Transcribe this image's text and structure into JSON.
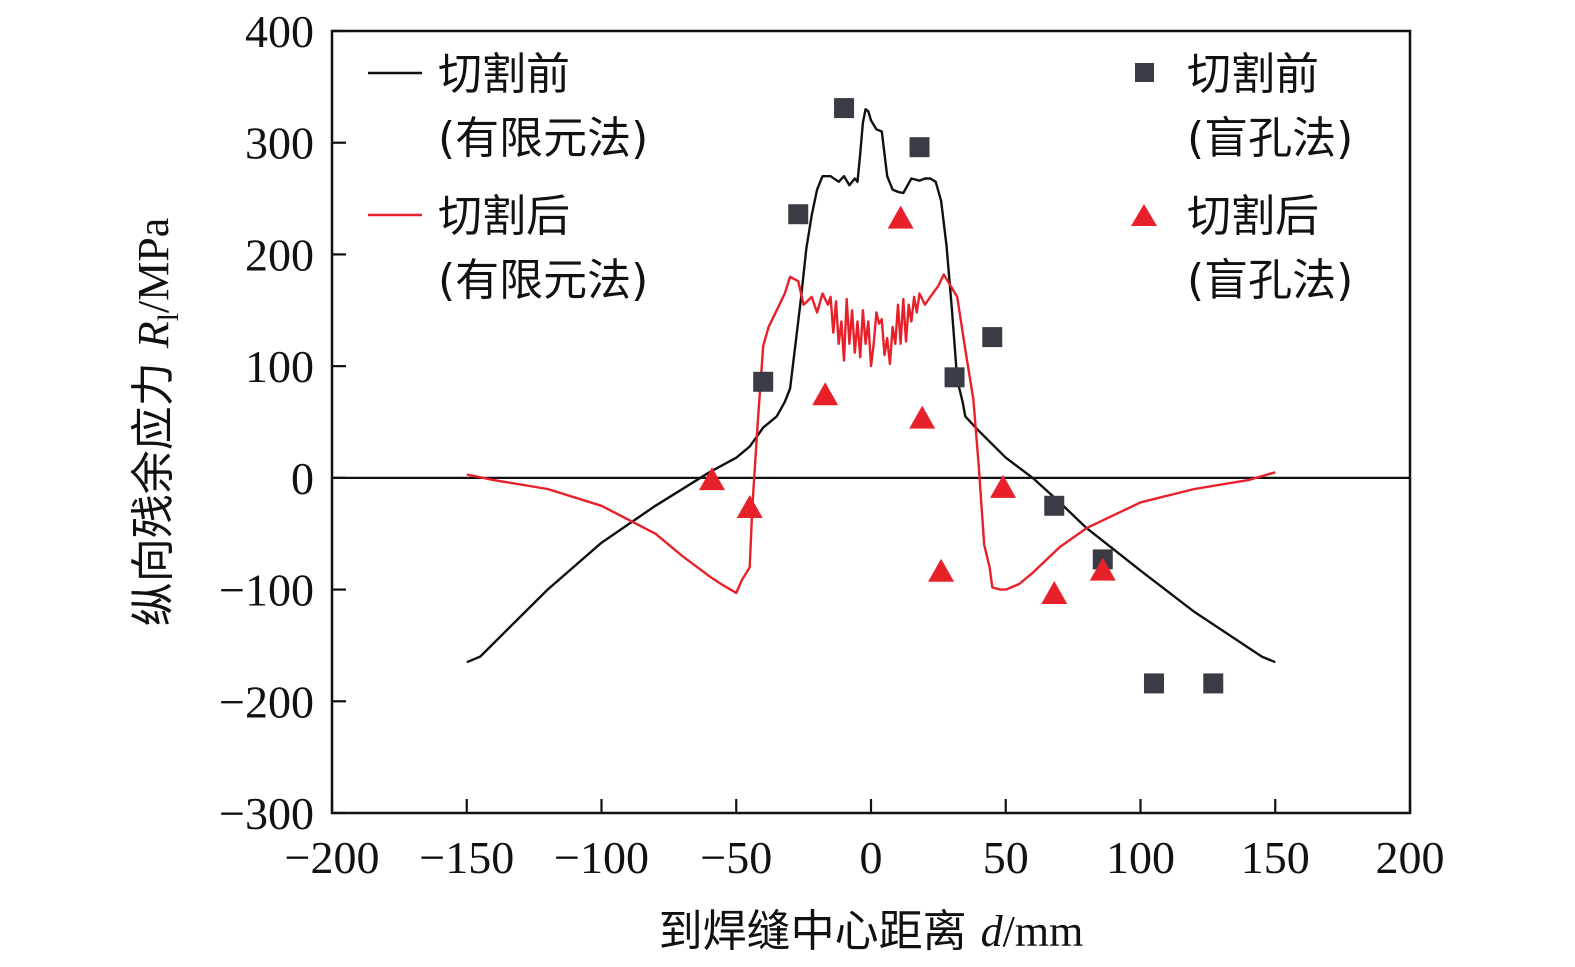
{
  "chart_data": {
    "type": "line",
    "xlabel": "到焊缝中心距离",
    "xlabel_var": "d",
    "xlabel_unit": "/mm",
    "ylabel": "纵向残余应力",
    "ylabel_var": "R",
    "ylabel_sub": "l",
    "ylabel_unit": "/MPa",
    "xlim": [
      -200,
      200
    ],
    "ylim": [
      -300,
      400
    ],
    "xticks": [
      -200,
      -150,
      -100,
      -50,
      0,
      50,
      100,
      150,
      200
    ],
    "yticks": [
      -300,
      -200,
      -100,
      0,
      100,
      200,
      300,
      400
    ],
    "xtick_labels": [
      "−200",
      "−150",
      "−100",
      "−50",
      "0",
      "50",
      "100",
      "150",
      "200"
    ],
    "ytick_labels": [
      "−300",
      "−200",
      "−100",
      "0",
      "100",
      "200",
      "300",
      "400"
    ],
    "grid": false,
    "zero_line": true,
    "colors": {
      "before": "#111111",
      "after": "#e8202a",
      "marker_square": "#3a3c45",
      "marker_triangle": "#e8202a"
    },
    "series": [
      {
        "name": "切割前",
        "name2": "(有限元法)",
        "kind": "line",
        "color": "#111111",
        "x": [
          -150,
          -145,
          -120,
          -100,
          -80,
          -60,
          -50,
          -45,
          -40,
          -35,
          -32,
          -30,
          -28,
          -26,
          -24,
          -22,
          -20,
          -18,
          -15,
          -12,
          -10,
          -8,
          -6,
          -5,
          -4,
          -3,
          -2,
          -1,
          0,
          2,
          4,
          6,
          8,
          10,
          12,
          15,
          18,
          20,
          22,
          24,
          26,
          28,
          30,
          32,
          34,
          35,
          40,
          45,
          50,
          60,
          70,
          80,
          100,
          120,
          145,
          150
        ],
        "y": [
          -165,
          -160,
          -100,
          -58,
          -25,
          5,
          18,
          28,
          45,
          55,
          68,
          80,
          120,
          160,
          205,
          235,
          258,
          270,
          270,
          265,
          270,
          262,
          268,
          265,
          290,
          318,
          330,
          328,
          320,
          312,
          310,
          270,
          258,
          256,
          255,
          268,
          266,
          268,
          268,
          265,
          248,
          208,
          152,
          88,
          68,
          55,
          42,
          30,
          18,
          0,
          -22,
          -45,
          -83,
          -120,
          -160,
          -165
        ]
      },
      {
        "name": "切割后",
        "name2": "(有限元法)",
        "kind": "line",
        "color": "#e8202a",
        "x": [
          -150,
          -140,
          -120,
          -100,
          -80,
          -70,
          -60,
          -55,
          -50,
          -48,
          -45,
          -44,
          -42,
          -40,
          -38,
          -35,
          -32,
          -30,
          -27,
          -25,
          -22,
          -20,
          -18,
          -16,
          -15,
          -14,
          -13,
          -12,
          -11,
          -10,
          -9,
          -8,
          -7,
          -6,
          -5,
          -4,
          -3,
          -2,
          -1,
          0,
          1,
          2,
          3,
          4,
          5,
          6,
          7,
          8,
          9,
          10,
          11,
          12,
          13,
          14,
          15,
          16,
          17,
          18,
          20,
          22,
          25,
          27,
          30,
          32,
          35,
          38,
          40,
          42,
          44,
          45,
          48,
          50,
          55,
          60,
          70,
          80,
          100,
          120,
          140,
          150
        ],
        "y": [
          3,
          -2,
          -10,
          -25,
          -50,
          -70,
          -88,
          -96,
          -103,
          -92,
          -80,
          -25,
          50,
          118,
          135,
          150,
          165,
          180,
          176,
          155,
          162,
          148,
          165,
          155,
          162,
          130,
          158,
          120,
          140,
          105,
          160,
          120,
          150,
          112,
          140,
          108,
          150,
          120,
          140,
          100,
          120,
          148,
          138,
          142,
          110,
          125,
          102,
          135,
          120,
          155,
          120,
          160,
          122,
          155,
          140,
          162,
          148,
          165,
          155,
          162,
          172,
          182,
          170,
          162,
          115,
          70,
          10,
          -60,
          -80,
          -98,
          -100,
          -100,
          -95,
          -85,
          -62,
          -45,
          -22,
          -10,
          -2,
          5
        ]
      },
      {
        "name": "切割前",
        "name2": "(盲孔法)",
        "kind": "square",
        "color": "#3a3c45",
        "x": [
          -40,
          -27,
          -10,
          18,
          31,
          45,
          68,
          86,
          105,
          127
        ],
        "y": [
          86,
          236,
          331,
          296,
          90,
          126,
          -25,
          -73,
          -184,
          -184
        ]
      },
      {
        "name": "切割后",
        "name2": "(盲孔法)",
        "kind": "triangle",
        "color": "#e8202a",
        "x": [
          -59,
          -45,
          -17,
          11,
          19,
          26,
          49,
          68,
          86
        ],
        "y": [
          -2,
          -27,
          74,
          232,
          53,
          -84,
          -9,
          -104,
          -83
        ]
      }
    ],
    "legend": {
      "left": [
        {
          "line1": "切割前",
          "line2": "(有限元法)"
        },
        {
          "line1": "切割后",
          "line2": "(有限元法)"
        }
      ],
      "right": [
        {
          "line1": "切割前",
          "line2": "(盲孔法)"
        },
        {
          "line1": "切割后",
          "line2": "(盲孔法)"
        }
      ],
      "position": "top"
    }
  }
}
